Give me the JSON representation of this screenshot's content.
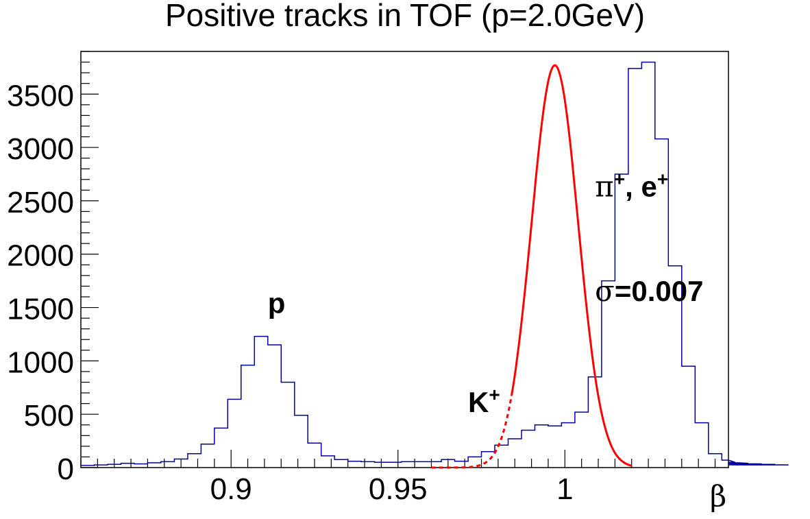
{
  "chart_data": {
    "type": "histogram",
    "title": "Positive tracks in TOF (p=2.0GeV)",
    "xlabel": "β",
    "ylabel": "",
    "xlim": [
      0.855,
      1.049
    ],
    "ylim": [
      0,
      3900
    ],
    "x_ticks": [
      {
        "value": 0.9,
        "label": "0.9"
      },
      {
        "value": 0.95,
        "label": "0.95"
      },
      {
        "value": 1.0,
        "label": "1"
      }
    ],
    "y_ticks": [
      {
        "value": 0,
        "label": "0"
      },
      {
        "value": 500,
        "label": "500"
      },
      {
        "value": 1000,
        "label": "1000"
      },
      {
        "value": 1500,
        "label": "1500"
      },
      {
        "value": 2000,
        "label": "2000"
      },
      {
        "value": 2500,
        "label": "2500"
      },
      {
        "value": 3000,
        "label": "3000"
      },
      {
        "value": 3500,
        "label": "3500"
      }
    ],
    "histogram": {
      "bin_start": 0.855,
      "bin_width": 0.004,
      "color": "#000099",
      "values": [
        20,
        25,
        30,
        40,
        35,
        45,
        55,
        80,
        130,
        220,
        370,
        640,
        960,
        1230,
        1150,
        800,
        490,
        230,
        110,
        75,
        60,
        55,
        50,
        50,
        55,
        55,
        55,
        75,
        60,
        100,
        150,
        210,
        270,
        350,
        400,
        390,
        420,
        520,
        850,
        1750,
        2750,
        3740,
        3800,
        3080,
        1890,
        950,
        420,
        130,
        70,
        50,
        40,
        35,
        30,
        25
      ]
    },
    "fit": {
      "type": "gaussian",
      "color": "#ff0000",
      "amplitude": 3770,
      "mean": 0.997,
      "sigma": 0.007,
      "solid_range": [
        0.984,
        1.02
      ],
      "dashed_range": [
        0.96,
        0.984
      ]
    },
    "annotations": [
      {
        "text": "p",
        "superscript": "",
        "x": 0.911,
        "y": 1450
      },
      {
        "text": "K",
        "superscript": "+",
        "x": 0.971,
        "y": 520
      },
      {
        "text": "π",
        "superscript": "+",
        "suffix": ", e",
        "suffix_superscript": "+",
        "x": 1.009,
        "y": 2540
      },
      {
        "text": "σ",
        "suffix": "=0.007",
        "x": 1.009,
        "y": 1560
      }
    ]
  }
}
